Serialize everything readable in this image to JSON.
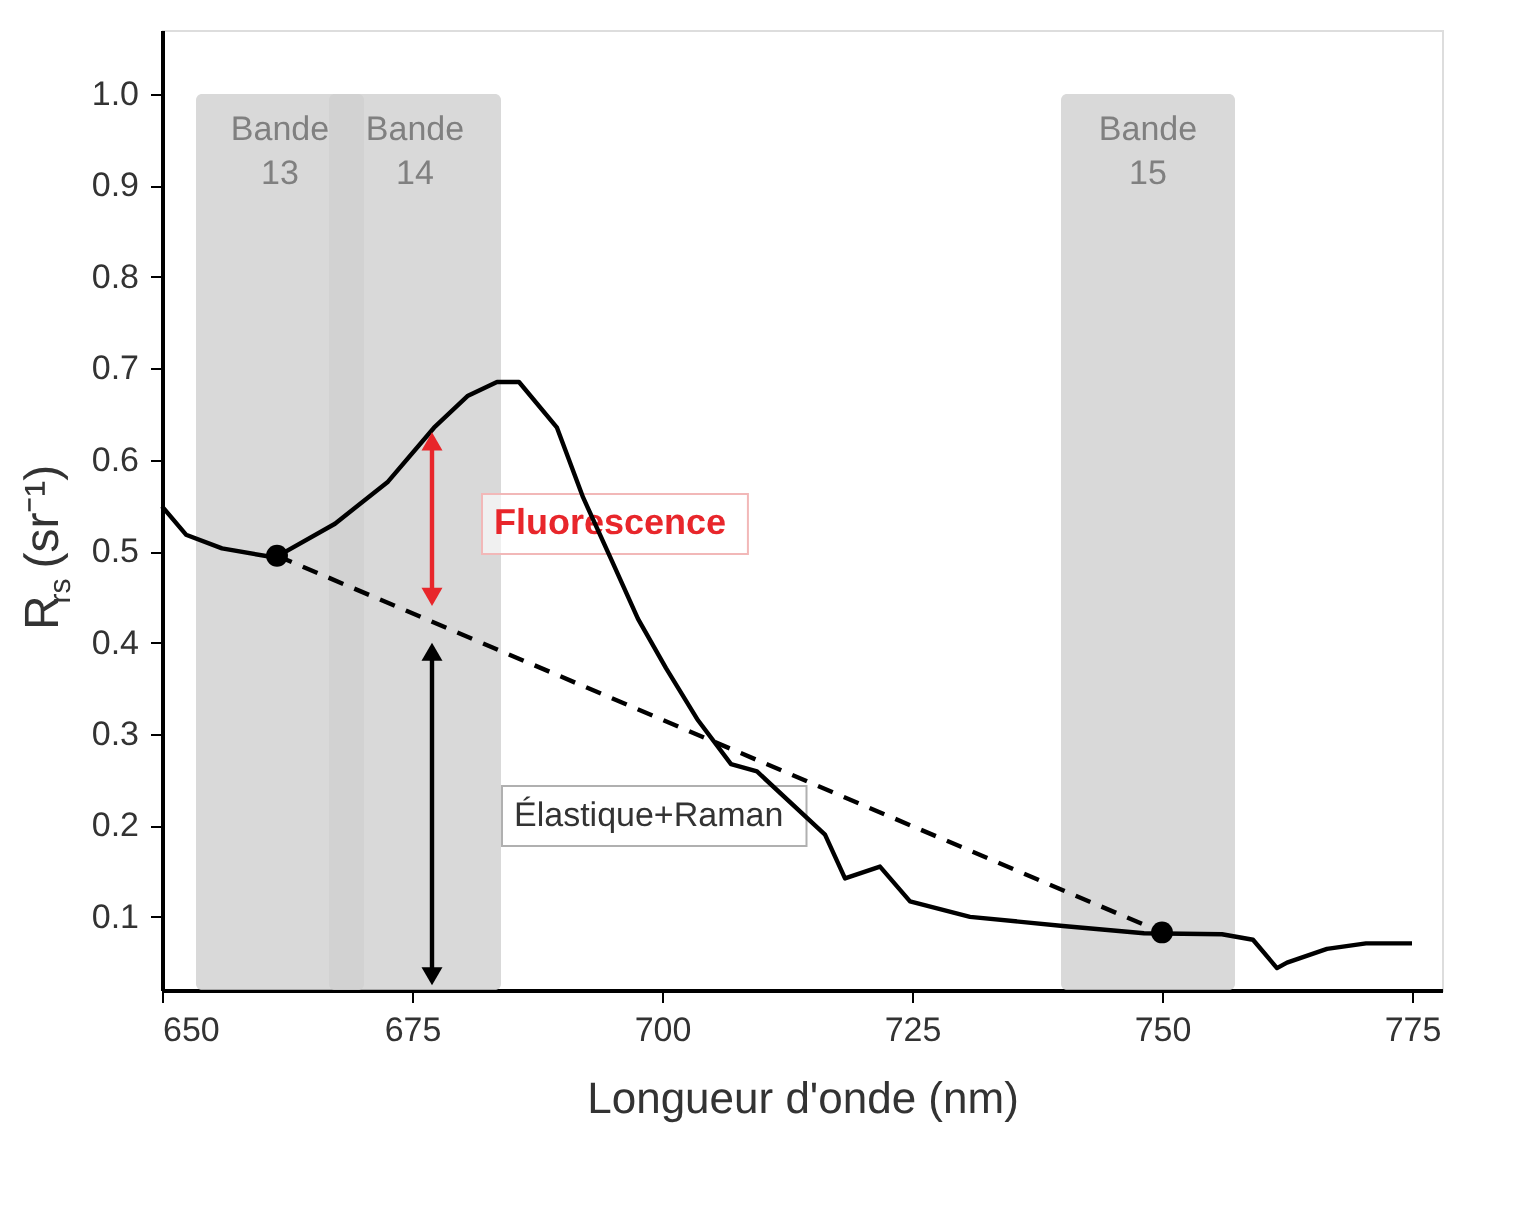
{
  "chart_data": {
    "type": "line",
    "xlabel": "Longueur d'onde (nm)",
    "ylabel": "R$_{rs}$ (sr⁻¹)",
    "xlim": [
      650,
      778
    ],
    "ylim": [
      0.02,
      1.07
    ],
    "xticks": [
      650,
      675,
      700,
      725,
      750,
      775
    ],
    "yticks": [
      0.1,
      0.2,
      0.3,
      0.4,
      0.5,
      0.6,
      0.7,
      0.8,
      0.9,
      {
        "value": 1.0,
        "label": "1.0"
      }
    ],
    "grid": false,
    "series": [
      {
        "color": "#000000",
        "line_style": "solid",
        "marker": "none",
        "x": [
          650,
          652.4,
          656.0,
          661.3,
          667.3,
          672.6,
          677.2,
          680.6,
          683.5,
          685.7,
          689.5,
          692.1,
          695.0,
          697.6,
          700.4,
          703.6,
          706.9,
          709.5,
          716.3,
          718.3,
          721.8,
          724.8,
          730.8,
          740.1,
          748.2,
          756.0,
          759.1,
          761.5,
          762.5,
          766.5,
          770.4,
          775.0
        ],
        "values": [
          0.549,
          0.518,
          0.503,
          0.493,
          0.53,
          0.576,
          0.635,
          0.67,
          0.685,
          0.685,
          0.635,
          0.559,
          0.489,
          0.426,
          0.372,
          0.315,
          0.267,
          0.259,
          0.19,
          0.142,
          0.155,
          0.117,
          0.1,
          0.09,
          0.082,
          0.081,
          0.075,
          0.044,
          0.05,
          0.065,
          0.071,
          0.071
        ]
      },
      {
        "color": "#000000",
        "line_style": "dashed",
        "marker": "circle",
        "x": [
          661.5,
          750
        ],
        "values": [
          0.495,
          0.083
        ]
      },
      {
        "color": "#e8262b",
        "line_style": "solid",
        "marker": "triangle",
        "x": [
          677,
          677
        ],
        "values": [
          0.45,
          0.62
        ]
      },
      {
        "color": "#000000",
        "line_style": "solid",
        "marker": "triangle",
        "x": [
          677,
          677
        ],
        "values": [
          0.035,
          0.39
        ]
      }
    ],
    "bands": [
      {
        "axis": "x",
        "from": 653.4,
        "to": 670.2,
        "label": "Bande 13",
        "color": "#cfcfcf"
      },
      {
        "axis": "x",
        "from": 666.7,
        "to": 683.9,
        "label": "Bande 14",
        "color": "#cfcfcf"
      },
      {
        "axis": "x",
        "from": 739.9,
        "to": 757.3,
        "label": "Bande 15",
        "color": "#cfcfcf"
      }
    ],
    "annotations": [
      "Fluorescence",
      "Élastique+Raman"
    ]
  }
}
